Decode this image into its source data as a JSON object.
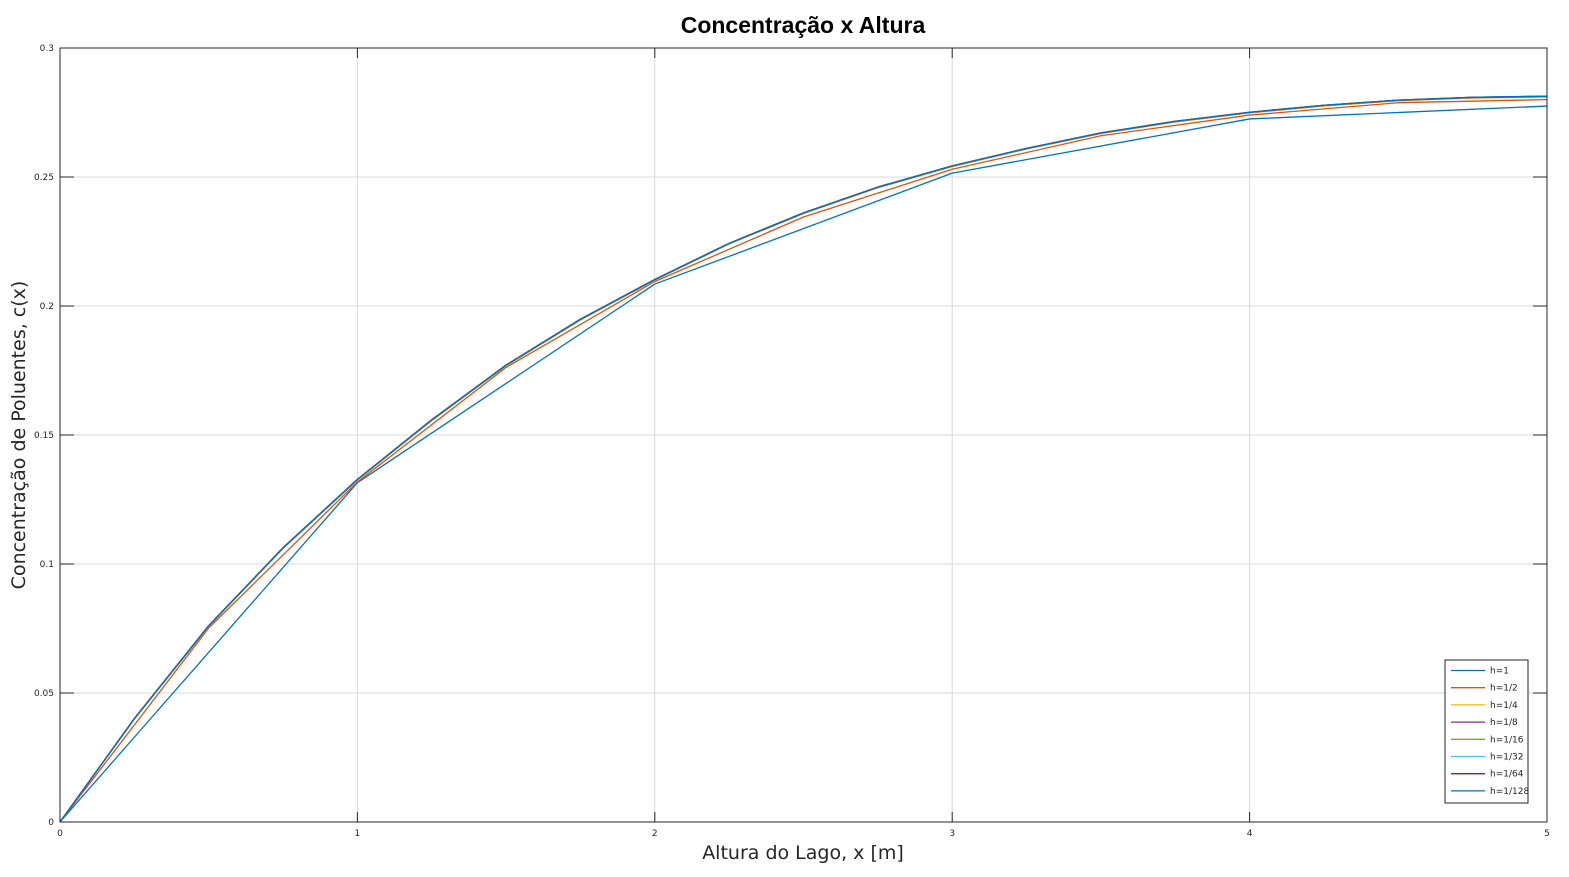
{
  "chart_data": {
    "type": "line",
    "title": "Concentração x Altura",
    "xlabel": "Altura do Lago, x [m]",
    "ylabel": "Concentração de Poluentes, c(x)",
    "xlim": [
      0,
      5
    ],
    "ylim": [
      0,
      0.3
    ],
    "xticks": [
      0,
      1,
      2,
      3,
      4,
      5
    ],
    "xtick_labels": [
      "0",
      "1",
      "2",
      "3",
      "4",
      "5"
    ],
    "yticks": [
      0,
      0.05,
      0.1,
      0.15,
      0.2,
      0.25,
      0.3
    ],
    "ytick_labels": [
      "0",
      "0.05",
      "0.1",
      "0.15",
      "0.2",
      "0.25",
      "0.3"
    ],
    "grid": true,
    "legend_position": "bottom-right",
    "series": [
      {
        "name": "h=1",
        "color": "#0072bd",
        "x": [
          0,
          1,
          2,
          3,
          4,
          5
        ],
        "y": [
          0,
          0.1315,
          0.2085,
          0.2515,
          0.2725,
          0.2775
        ]
      },
      {
        "name": "h=1/2",
        "color": "#d95319",
        "x": [
          0,
          0.5,
          1,
          1.5,
          2,
          2.5,
          3,
          3.5,
          4,
          4.5,
          5
        ],
        "y": [
          0,
          0.0752,
          0.1318,
          0.1762,
          0.2095,
          0.2345,
          0.253,
          0.266,
          0.274,
          0.2788,
          0.28
        ]
      },
      {
        "name": "h=1/4",
        "color": "#edb120",
        "x": [
          0,
          0.25,
          0.5,
          0.75,
          1,
          1.25,
          1.5,
          1.75,
          2,
          2.25,
          2.5,
          2.75,
          3,
          3.25,
          3.5,
          3.75,
          4,
          4.25,
          4.5,
          4.75,
          5
        ],
        "y": [
          0,
          0.0398,
          0.0758,
          0.106,
          0.1325,
          0.1555,
          0.1768,
          0.1945,
          0.21,
          0.224,
          0.2358,
          0.2458,
          0.254,
          0.2608,
          0.2668,
          0.2713,
          0.2748,
          0.2775,
          0.2795,
          0.2806,
          0.281
        ]
      },
      {
        "name": "h=1/8",
        "color": "#7e2f8e",
        "x": [
          0,
          0.25,
          0.5,
          0.75,
          1,
          1.25,
          1.5,
          1.75,
          2,
          2.25,
          2.5,
          2.75,
          3,
          3.25,
          3.5,
          3.75,
          4,
          4.25,
          4.5,
          4.75,
          5
        ],
        "y": [
          0,
          0.04,
          0.076,
          0.1062,
          0.1327,
          0.1558,
          0.177,
          0.1948,
          0.2102,
          0.2242,
          0.236,
          0.246,
          0.2542,
          0.261,
          0.267,
          0.2715,
          0.275,
          0.2777,
          0.2797,
          0.2808,
          0.2812
        ]
      },
      {
        "name": "h=1/16",
        "color": "#77ac30",
        "x": [
          0,
          0.25,
          0.5,
          0.75,
          1,
          1.25,
          1.5,
          1.75,
          2,
          2.25,
          2.5,
          2.75,
          3,
          3.25,
          3.5,
          3.75,
          4,
          4.25,
          4.5,
          4.75,
          5
        ],
        "y": [
          0,
          0.0401,
          0.0761,
          0.1063,
          0.1328,
          0.1559,
          0.1771,
          0.1949,
          0.2103,
          0.2243,
          0.2361,
          0.2461,
          0.2543,
          0.2611,
          0.2671,
          0.2716,
          0.2751,
          0.2778,
          0.2798,
          0.2809,
          0.2813
        ]
      },
      {
        "name": "h=1/32",
        "color": "#4dbeee",
        "x": [
          0,
          0.25,
          0.5,
          0.75,
          1,
          1.25,
          1.5,
          1.75,
          2,
          2.25,
          2.5,
          2.75,
          3,
          3.25,
          3.5,
          3.75,
          4,
          4.25,
          4.5,
          4.75,
          5
        ],
        "y": [
          0,
          0.0401,
          0.0761,
          0.1063,
          0.1328,
          0.1559,
          0.1771,
          0.1949,
          0.2103,
          0.2243,
          0.2361,
          0.2461,
          0.2543,
          0.2611,
          0.2671,
          0.2716,
          0.2751,
          0.2778,
          0.2798,
          0.2809,
          0.2813
        ]
      },
      {
        "name": "h=1/64",
        "color": "#a2142f",
        "x": [
          0,
          0.25,
          0.5,
          0.75,
          1,
          1.25,
          1.5,
          1.75,
          2,
          2.25,
          2.5,
          2.75,
          3,
          3.25,
          3.5,
          3.75,
          4,
          4.25,
          4.5,
          4.75,
          5
        ],
        "y": [
          0,
          0.0401,
          0.0761,
          0.1063,
          0.1328,
          0.1559,
          0.1771,
          0.1949,
          0.2103,
          0.2243,
          0.2361,
          0.2461,
          0.2543,
          0.2611,
          0.2671,
          0.2716,
          0.2751,
          0.2778,
          0.2798,
          0.2809,
          0.2813
        ]
      },
      {
        "name": "h=1/128",
        "color": "#0072bd",
        "x": [
          0,
          0.25,
          0.5,
          0.75,
          1,
          1.25,
          1.5,
          1.75,
          2,
          2.25,
          2.5,
          2.75,
          3,
          3.25,
          3.5,
          3.75,
          4,
          4.25,
          4.5,
          4.75,
          5
        ],
        "y": [
          0,
          0.0401,
          0.0761,
          0.1063,
          0.1328,
          0.1559,
          0.1771,
          0.1949,
          0.2103,
          0.2243,
          0.2361,
          0.2461,
          0.2543,
          0.2611,
          0.2671,
          0.2716,
          0.2751,
          0.2778,
          0.2798,
          0.2809,
          0.2813
        ]
      }
    ]
  }
}
